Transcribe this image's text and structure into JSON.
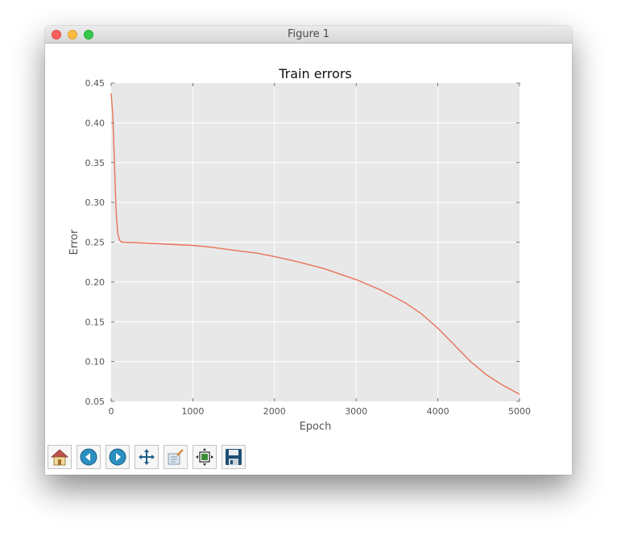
{
  "window": {
    "title": "Figure 1"
  },
  "toolbar": {
    "items": [
      {
        "name": "home",
        "icon": "home-icon"
      },
      {
        "name": "back",
        "icon": "arrow-left-icon"
      },
      {
        "name": "forward",
        "icon": "arrow-right-icon"
      },
      {
        "name": "pan",
        "icon": "move-icon"
      },
      {
        "name": "zoom",
        "icon": "zoom-rect-icon"
      },
      {
        "name": "subplots",
        "icon": "subplots-icon"
      },
      {
        "name": "save",
        "icon": "floppy-icon"
      }
    ]
  },
  "chart_data": {
    "type": "line",
    "title": "Train errors",
    "xlabel": "Epoch",
    "ylabel": "Error",
    "xlim": [
      0,
      5000
    ],
    "ylim": [
      0.05,
      0.45
    ],
    "xticks": [
      0,
      1000,
      2000,
      3000,
      4000,
      5000
    ],
    "xtick_labels": [
      "0",
      "1000",
      "2000",
      "3000",
      "4000",
      "5000"
    ],
    "yticks": [
      0.05,
      0.1,
      0.15,
      0.2,
      0.25,
      0.3,
      0.35,
      0.4,
      0.45
    ],
    "ytick_labels": [
      "0.05",
      "0.10",
      "0.15",
      "0.20",
      "0.25",
      "0.30",
      "0.35",
      "0.40",
      "0.45"
    ],
    "grid": true,
    "background": "#e8e8e8",
    "series": [
      {
        "color": "#e8745a",
        "x": [
          0,
          20,
          40,
          60,
          80,
          100,
          120,
          150,
          200,
          300,
          500,
          800,
          1000,
          1200,
          1500,
          1800,
          2000,
          2300,
          2600,
          3000,
          3300,
          3600,
          3800,
          4000,
          4200,
          4400,
          4600,
          4800,
          5000
        ],
        "y": [
          0.437,
          0.41,
          0.35,
          0.29,
          0.262,
          0.253,
          0.2505,
          0.25,
          0.2498,
          0.2495,
          0.2485,
          0.247,
          0.246,
          0.244,
          0.24,
          0.236,
          0.232,
          0.225,
          0.217,
          0.203,
          0.19,
          0.174,
          0.16,
          0.142,
          0.121,
          0.1,
          0.083,
          0.07,
          0.059
        ]
      }
    ]
  }
}
